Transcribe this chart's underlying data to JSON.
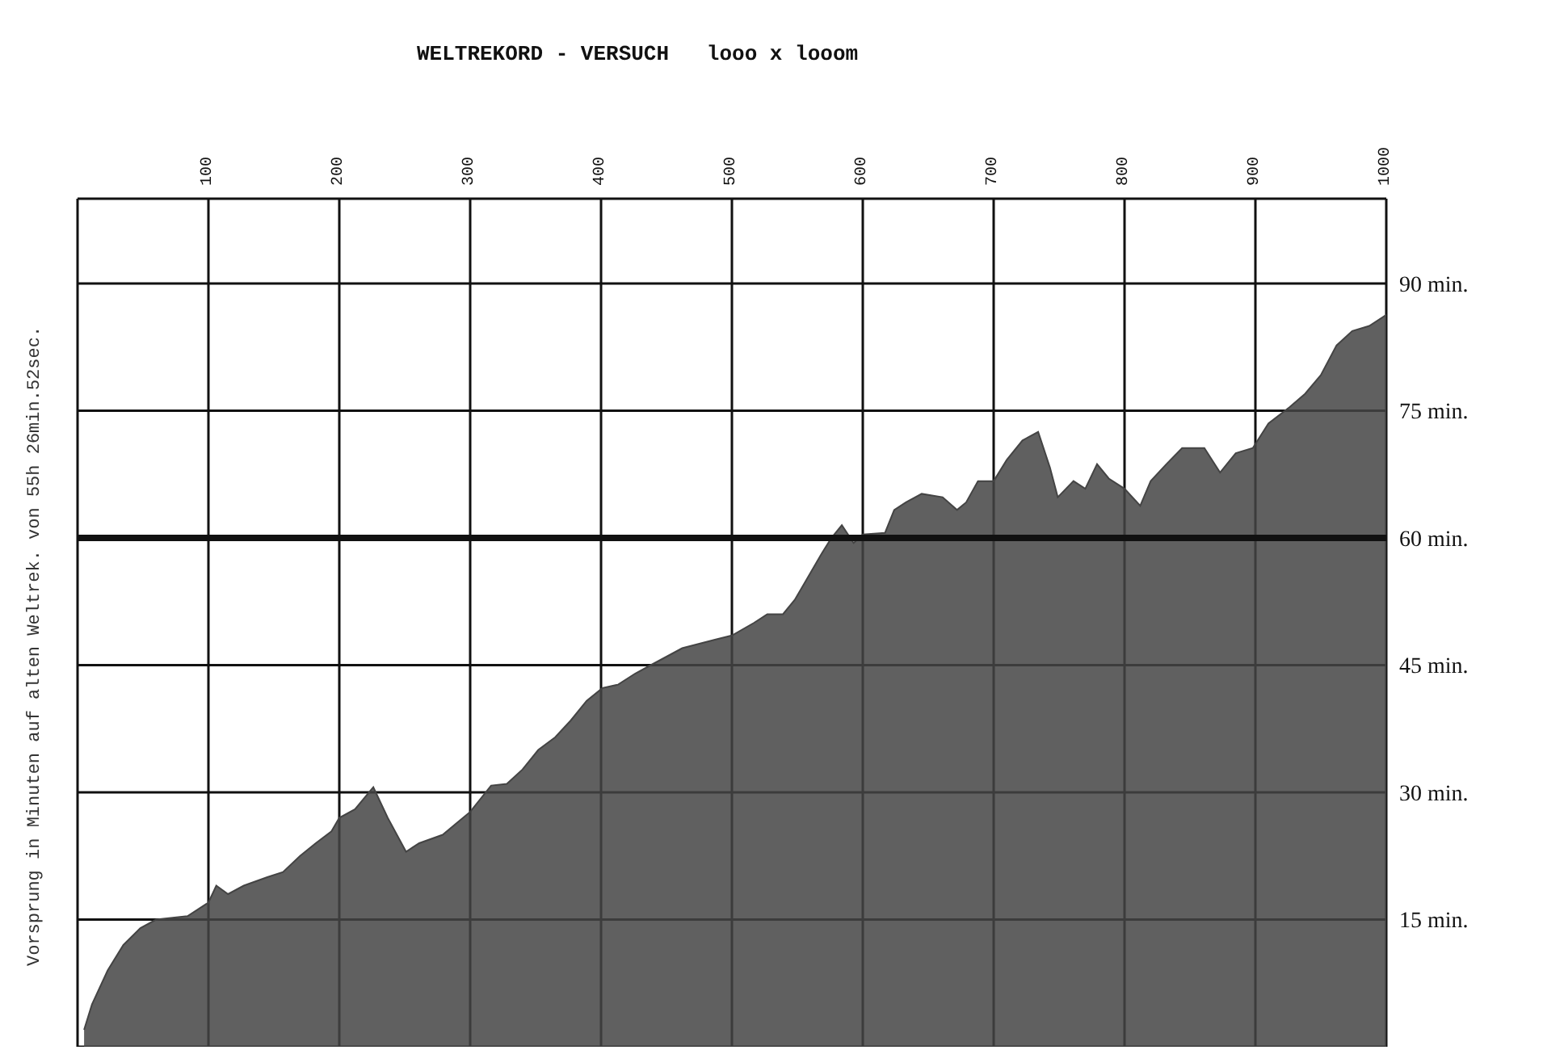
{
  "chart_data": {
    "type": "area",
    "title": "WELTREKORD - VERSUCH   looo x looom",
    "ylabel": "Vorsprung in Minuten auf alten Weltrek. von 55h 26min.52sec.",
    "x": [
      5,
      11,
      23,
      35,
      48,
      60,
      84,
      100,
      106,
      115,
      127,
      145,
      157,
      170,
      182,
      194,
      200,
      212,
      226,
      237,
      251,
      261,
      279,
      300,
      316,
      328,
      340,
      352,
      365,
      377,
      389,
      401,
      413,
      426,
      438,
      462,
      487,
      500,
      517,
      527,
      539,
      548,
      556,
      568,
      576,
      584,
      593,
      600,
      617,
      624,
      633,
      645,
      661,
      672,
      679,
      688,
      700,
      710,
      722,
      734,
      743,
      749,
      761,
      770,
      779,
      788,
      800,
      812,
      820,
      832,
      844,
      861,
      873,
      885,
      898,
      910,
      926,
      938,
      950,
      962,
      974,
      987,
      1000
    ],
    "series": [
      {
        "color": "#444444",
        "values": [
          2,
          5,
          9,
          12,
          14,
          15,
          15.4,
          17,
          19,
          18,
          19,
          20,
          20.6,
          22.5,
          24,
          25.4,
          27,
          28,
          30.6,
          27,
          23,
          24,
          25,
          27.7,
          30.8,
          31,
          32.7,
          35,
          36.5,
          38.5,
          40.8,
          42.3,
          42.7,
          44,
          45,
          47,
          48,
          48.5,
          50,
          51,
          51,
          52.7,
          54.8,
          58,
          60,
          61.5,
          59.4,
          60.4,
          60.6,
          63.3,
          64.2,
          65.2,
          64.8,
          63.3,
          64.2,
          66.7,
          66.7,
          69.2,
          71.5,
          72.5,
          68.3,
          64.8,
          66.7,
          65.8,
          68.7,
          67,
          65.8,
          63.8,
          66.7,
          68.7,
          70.6,
          70.6,
          67.7,
          70,
          70.6,
          73.5,
          75.4,
          77,
          79.2,
          82.7,
          84.4,
          85,
          86.3
        ]
      }
    ],
    "xlim": [
      0,
      1000
    ],
    "xticks": [
      100,
      200,
      300,
      400,
      500,
      600,
      700,
      800,
      900,
      1000
    ],
    "ylim": [
      0,
      100
    ],
    "yticks": [
      {
        "value": 15,
        "label": "15 min."
      },
      {
        "value": 30,
        "label": "30 min."
      },
      {
        "value": 45,
        "label": "45 min."
      },
      {
        "value": 60,
        "label": "60 min."
      },
      {
        "value": 75,
        "label": "75 min."
      },
      {
        "value": 90,
        "label": "90 min."
      }
    ],
    "ref_lines": [
      {
        "axis": "y",
        "value": 60,
        "label": null,
        "color": "#111111"
      }
    ],
    "grid": true
  }
}
